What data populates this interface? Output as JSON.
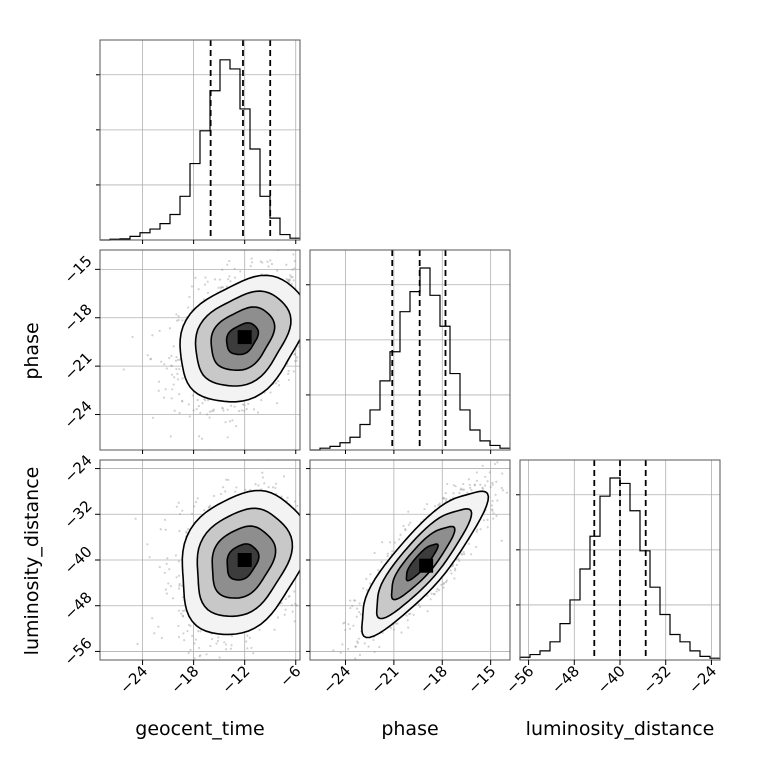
{
  "chart_data": {
    "type": "corner",
    "parameters": [
      "geocent_time",
      "phase",
      "luminosity_distance"
    ],
    "axis_labels": {
      "bottom": [
        "geocent_time",
        "phase",
        "luminosity_distance"
      ],
      "left": [
        "phase",
        "luminosity_distance"
      ]
    },
    "ranges": {
      "geocent_time": [
        -29,
        -5.5
      ],
      "phase": [
        -26.2,
        -13.8
      ],
      "luminosity_distance": [
        -57.5,
        -22.5
      ]
    },
    "ticks": {
      "geocent_time": [
        -24,
        -18,
        -12,
        -6
      ],
      "phase": [
        -24,
        -21,
        -18,
        -15
      ],
      "luminosity_distance": [
        -56,
        -48,
        -40,
        -32,
        -24
      ]
    },
    "tick_labels": {
      "geocent_time": [
        "−24",
        "−18",
        "−12",
        "−6"
      ],
      "phase": [
        "−24",
        "−21",
        "−18",
        "−15"
      ],
      "luminosity_distance": [
        "−56",
        "−48",
        "−40",
        "−32",
        "−24"
      ]
    },
    "marginals": {
      "geocent_time": {
        "bin_edges": [
          -29,
          -27.825,
          -26.65,
          -25.475,
          -24.3,
          -23.125,
          -21.95,
          -20.775,
          -19.6,
          -18.425,
          -17.25,
          -16.075,
          -14.9,
          -13.725,
          -12.55,
          -11.375,
          -10.2,
          -9.025,
          -7.85,
          -6.675,
          -5.5
        ],
        "counts": [
          0.0,
          0.004,
          0.006,
          0.02,
          0.04,
          0.06,
          0.09,
          0.14,
          0.24,
          0.42,
          0.6,
          0.82,
          0.99,
          0.94,
          0.72,
          0.5,
          0.24,
          0.12,
          0.03,
          0.01
        ],
        "quantiles": [
          -16.0,
          -12.2,
          -9.0
        ]
      },
      "phase": {
        "bin_edges": [
          -26.2,
          -25.58,
          -24.96,
          -24.34,
          -23.72,
          -23.1,
          -22.48,
          -21.86,
          -21.24,
          -20.62,
          -20.0,
          -19.38,
          -18.76,
          -18.14,
          -17.52,
          -16.9,
          -16.28,
          -15.66,
          -15.04,
          -14.42,
          -13.8
        ],
        "counts": [
          0.0,
          0.01,
          0.02,
          0.04,
          0.07,
          0.14,
          0.22,
          0.38,
          0.54,
          0.76,
          0.87,
          1.0,
          0.85,
          0.68,
          0.42,
          0.22,
          0.11,
          0.05,
          0.025,
          0.01
        ],
        "quantiles": [
          -21.1,
          -19.4,
          -17.8
        ]
      },
      "luminosity_distance": {
        "bin_edges": [
          -57.5,
          -55.75,
          -54.0,
          -52.25,
          -50.5,
          -48.75,
          -47.0,
          -45.25,
          -43.5,
          -41.75,
          -40.0,
          -38.25,
          -36.5,
          -34.75,
          -33.0,
          -31.25,
          -29.5,
          -27.75,
          -26.0,
          -24.25,
          -22.5
        ],
        "counts": [
          0.015,
          0.03,
          0.05,
          0.1,
          0.2,
          0.33,
          0.5,
          0.68,
          0.9,
          1.0,
          0.97,
          0.82,
          0.6,
          0.4,
          0.25,
          0.14,
          0.1,
          0.05,
          0.02,
          0.01
        ],
        "quantiles": [
          -44.5,
          -40.0,
          -35.5
        ]
      }
    },
    "joints": [
      {
        "x": "geocent_time",
        "y": "phase",
        "mean": [
          -12.3,
          -19.3
        ],
        "std": [
          3.7,
          1.95
        ],
        "rho": 0.3,
        "density_peak": [
          -12.0,
          -19.2
        ],
        "contour_levels_sigma": [
          0.5,
          1.0,
          1.5,
          2.0
        ]
      },
      {
        "x": "geocent_time",
        "y": "luminosity_distance",
        "mean": [
          -12.3,
          -40.3
        ],
        "std": [
          3.7,
          6.3
        ],
        "rho": 0.25,
        "density_peak": [
          -12.0,
          -40.0
        ],
        "contour_levels_sigma": [
          0.5,
          1.0,
          1.5,
          2.0
        ]
      },
      {
        "x": "phase",
        "y": "luminosity_distance",
        "mean": [
          -19.3,
          -40.3
        ],
        "std": [
          1.95,
          6.3
        ],
        "rho": 0.85,
        "density_peak": [
          -19.0,
          -41.0
        ],
        "contour_levels_sigma": [
          0.5,
          1.0,
          1.5,
          2.0
        ]
      }
    ],
    "grid": true,
    "colors": {
      "hist": "#000000",
      "points": "#9a9a9a",
      "density_low": "#ffffff",
      "density_high": "#000000"
    }
  }
}
